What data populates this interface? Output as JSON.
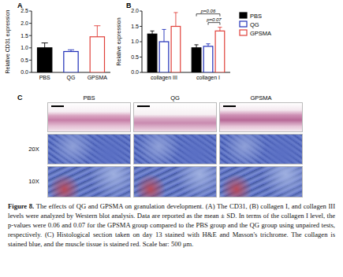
{
  "chart_data": [
    {
      "type": "bar",
      "panel": "A",
      "ylabel": "Relative CD31 expression",
      "categories": [
        "PBS",
        "QG",
        "GPSMA"
      ],
      "values": [
        1.0,
        0.85,
        1.45
      ],
      "errors": [
        0.2,
        0.07,
        0.45
      ],
      "colors": [
        "#000000",
        "#1f2fb8",
        "#e0403a"
      ],
      "ylim": [
        0,
        2.5
      ],
      "yticks": [
        {
          "value": 0,
          "label": "0.0"
        },
        0.5,
        {
          "value": 1,
          "label": "1.0"
        },
        1.5,
        {
          "value": 2,
          "label": "2.0"
        },
        2.5
      ]
    },
    {
      "type": "bar",
      "panel": "B",
      "ylabel": "Relative expression",
      "categories": [
        "collagen III",
        "collagen I"
      ],
      "series": [
        {
          "name": "PBS",
          "color": "#000000",
          "values": [
            1.25,
            0.8
          ],
          "errors": [
            0.1,
            0.1
          ]
        },
        {
          "name": "QG",
          "color": "#1f2fb8",
          "values": [
            1.0,
            0.85
          ],
          "errors": [
            0.4,
            0.08
          ]
        },
        {
          "name": "GPSMA",
          "color": "#e0403a",
          "values": [
            1.5,
            1.35
          ],
          "errors": [
            0.45,
            0.12
          ]
        }
      ],
      "annotations": [
        "p=0.06",
        "p=0.07"
      ],
      "legend": "right",
      "ylim": [
        0,
        2.0
      ],
      "yticks": [
        {
          "value": 0,
          "label": "0.0"
        },
        0.5,
        {
          "value": 1,
          "label": "1.0"
        },
        1.5,
        {
          "value": 2,
          "label": "2.0"
        }
      ]
    }
  ],
  "panel_c": {
    "label": "C",
    "columns": [
      "PBS",
      "QG",
      "GPSMA"
    ],
    "rows": [
      "20X",
      "10X"
    ]
  },
  "caption": {
    "label": "Figure 8.",
    "text": " The effects of QG and GPSMA on granulation development. (A) The CD31, (B) collagen I, and collagen III levels were analyzed by Western blot analysis. Data are reported as the mean ± SD. In terms of the collagen I level, the p-values were 0.06 and 0.07 for the GPSMA group compared to the PBS group and the QG group using unpaired tests, respectively. (C) Histological section taken on day 13 stained with H&E and Masson's trichrome. The collagen is stained blue, and the muscle tissue is stained red. Scale bar: 500 μm."
  }
}
